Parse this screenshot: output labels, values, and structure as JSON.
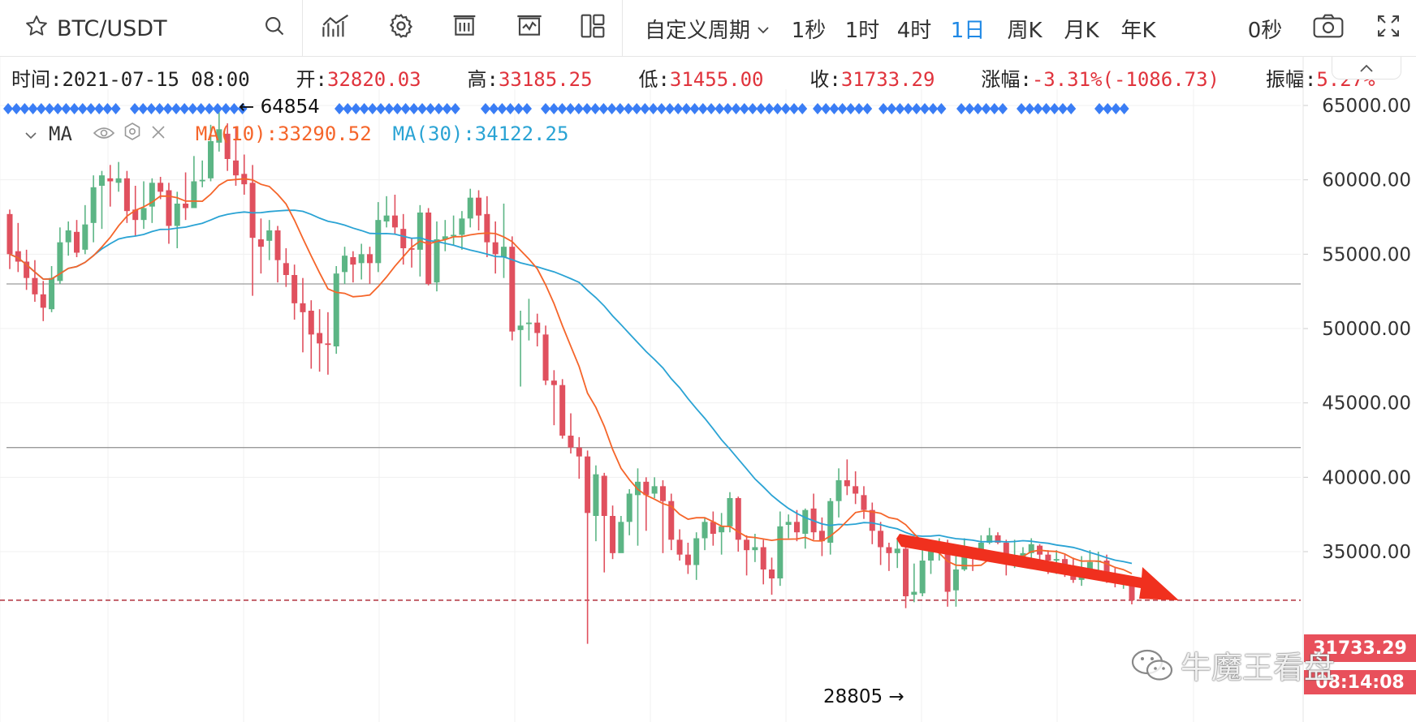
{
  "toolbar": {
    "symbol": "BTC/USDT",
    "custom_period": "自定义周期",
    "periods": [
      "1秒",
      "1时",
      "4时",
      "1日",
      "周K",
      "月K",
      "年K"
    ],
    "active_period": "1日",
    "countdown": "0秒",
    "icons": [
      "star-icon",
      "search-icon",
      "indicator-icon",
      "settings-icon",
      "draw-icon",
      "compare-icon",
      "layout-icon",
      "camera-icon",
      "fullscreen-icon"
    ]
  },
  "info": {
    "time_label": "时间:",
    "time": "2021-07-15 08:00",
    "open_label": "开:",
    "open": "32820.03",
    "high_label": "高:",
    "high": "33185.25",
    "low_label": "低:",
    "low": "31455.00",
    "close_label": "收:",
    "close": "31733.29",
    "change_label": "涨幅:",
    "change": "-3.31%(-1086.73)",
    "amp_label": "振幅:",
    "amp": "5.27%"
  },
  "ma_legend": {
    "name": "MA",
    "ma10_label": "MA(10):33290.52",
    "ma30_label": "MA(30):34122.25"
  },
  "colors": {
    "up": "#5cb585",
    "down": "#e0505e",
    "ma10": "#f5652a",
    "ma30": "#2aa3d4",
    "arrow": "#f0301e",
    "marker": "#3a7df5"
  },
  "current_price_label": "31733.29",
  "countdown_label": "08:14:08",
  "watermark": "牛魔王看盘",
  "chart_data": {
    "type": "candlestick",
    "y_ticks": [
      "65000.00",
      "60000.00",
      "55000.00",
      "50000.00",
      "45000.00",
      "40000.00",
      "35000.00"
    ],
    "ylim": [
      27400,
      66600
    ],
    "high_annotation": "← 64854",
    "low_annotation": "28805 →",
    "horizontal_lines": [
      53000,
      42000
    ],
    "current_price": 31733.29,
    "candles": [
      [
        57700,
        55000,
        58000,
        54000
      ],
      [
        55200,
        54500,
        57100,
        53800
      ],
      [
        54500,
        53400,
        55300,
        52600
      ],
      [
        53400,
        52300,
        54600,
        51800
      ],
      [
        52300,
        51400,
        53200,
        50500
      ],
      [
        51300,
        53400,
        54200,
        51100
      ],
      [
        53200,
        55800,
        56800,
        53000
      ],
      [
        55800,
        56600,
        57200,
        54900
      ],
      [
        56500,
        55100,
        57300,
        54800
      ],
      [
        55300,
        57000,
        58300,
        55000
      ],
      [
        57100,
        59500,
        60300,
        55800
      ],
      [
        59600,
        60300,
        60600,
        56700
      ],
      [
        60100,
        59900,
        61000,
        58200
      ],
      [
        59800,
        60100,
        61200,
        59200
      ],
      [
        60100,
        57900,
        60600,
        57100
      ],
      [
        58000,
        57300,
        59600,
        56200
      ],
      [
        57300,
        58100,
        59900,
        56700
      ],
      [
        58200,
        59800,
        60100,
        57100
      ],
      [
        59800,
        59200,
        60200,
        58700
      ],
      [
        59300,
        56900,
        59800,
        55700
      ],
      [
        56900,
        58400,
        59200,
        55400
      ],
      [
        58400,
        58100,
        60500,
        57300
      ],
      [
        58100,
        59900,
        61600,
        59100
      ],
      [
        59900,
        60000,
        61300,
        59500
      ],
      [
        60100,
        62600,
        63700,
        59900
      ],
      [
        62500,
        63400,
        64854,
        61900
      ],
      [
        63100,
        61400,
        63800,
        60600
      ],
      [
        61300,
        60300,
        63500,
        59600
      ],
      [
        60400,
        59700,
        61700,
        59000
      ],
      [
        59800,
        56100,
        61000,
        52200
      ],
      [
        56000,
        55500,
        57400,
        53700
      ],
      [
        55900,
        56600,
        57300,
        54600
      ],
      [
        56600,
        54600,
        56900,
        53100
      ],
      [
        54400,
        53600,
        55400,
        52800
      ],
      [
        53600,
        51700,
        54300,
        50600
      ],
      [
        51700,
        51100,
        53400,
        48400
      ],
      [
        51200,
        49600,
        51900,
        47300
      ],
      [
        49700,
        49000,
        51300,
        47100
      ],
      [
        49000,
        48900,
        51100,
        46900
      ],
      [
        48800,
        53700,
        54200,
        48300
      ],
      [
        53800,
        54900,
        55500,
        53000
      ],
      [
        54800,
        54300,
        55200,
        53100
      ],
      [
        54400,
        55000,
        55700,
        53300
      ],
      [
        55000,
        54400,
        55500,
        53000
      ],
      [
        54400,
        57300,
        58500,
        53800
      ],
      [
        57200,
        57600,
        58900,
        56800
      ],
      [
        57600,
        56800,
        59000,
        56300
      ],
      [
        56700,
        55400,
        57700,
        54300
      ],
      [
        55400,
        55300,
        56100,
        54100
      ],
      [
        55300,
        57800,
        58300,
        53500
      ],
      [
        57800,
        53000,
        58100,
        52900
      ],
      [
        53100,
        56000,
        57200,
        52500
      ],
      [
        56000,
        56200,
        57300,
        55200
      ],
      [
        56200,
        56300,
        57600,
        55600
      ],
      [
        56300,
        57400,
        57900,
        55300
      ],
      [
        57400,
        58800,
        59400,
        56800
      ],
      [
        58800,
        57600,
        59300,
        56600
      ],
      [
        57700,
        55800,
        58900,
        54800
      ],
      [
        55800,
        55000,
        57200,
        53700
      ],
      [
        54800,
        55500,
        58400,
        53400
      ],
      [
        55500,
        49800,
        56200,
        49200
      ],
      [
        49900,
        50200,
        51200,
        46100
      ],
      [
        50300,
        50400,
        52000,
        49200
      ],
      [
        50400,
        49700,
        51000,
        48800
      ],
      [
        49600,
        46500,
        50200,
        46200
      ],
      [
        46500,
        46200,
        47200,
        43500
      ],
      [
        46200,
        42800,
        46600,
        42600
      ],
      [
        42800,
        42000,
        44300,
        41600
      ],
      [
        42000,
        41400,
        42700,
        39900
      ],
      [
        41400,
        37600,
        41800,
        28805
      ],
      [
        37400,
        40200,
        40800,
        35700
      ],
      [
        40100,
        37400,
        40300,
        33600
      ],
      [
        37400,
        34900,
        38100,
        34500
      ],
      [
        34900,
        37000,
        37400,
        35600
      ],
      [
        37000,
        38900,
        39200,
        36100
      ],
      [
        38800,
        39700,
        40600,
        35400
      ],
      [
        39700,
        38800,
        40000,
        36400
      ],
      [
        38900,
        39400,
        40000,
        38600
      ],
      [
        39400,
        38400,
        39800,
        34900
      ],
      [
        38400,
        35800,
        38900,
        35100
      ],
      [
        35800,
        34800,
        36500,
        34400
      ],
      [
        34800,
        34100,
        35600,
        33500
      ],
      [
        34100,
        35900,
        36300,
        33100
      ],
      [
        35900,
        37000,
        37300,
        35100
      ],
      [
        37000,
        36200,
        37700,
        35400
      ],
      [
        36300,
        36700,
        37600,
        34800
      ],
      [
        36700,
        38600,
        39000,
        36300
      ],
      [
        38600,
        35800,
        38700,
        35000
      ],
      [
        35800,
        35100,
        36100,
        33400
      ],
      [
        35100,
        35300,
        36200,
        34300
      ],
      [
        35300,
        33800,
        35800,
        32800
      ],
      [
        33800,
        33200,
        34600,
        32100
      ],
      [
        33200,
        36700,
        37700,
        32700
      ],
      [
        36800,
        37000,
        37500,
        35900
      ],
      [
        37000,
        36300,
        37800,
        35700
      ],
      [
        36200,
        37800,
        37900,
        35200
      ],
      [
        37900,
        36300,
        38900,
        35800
      ],
      [
        36400,
        35700,
        37300,
        34700
      ],
      [
        35600,
        38400,
        38600,
        34800
      ],
      [
        38400,
        39800,
        40600,
        37300
      ],
      [
        39800,
        39400,
        41200,
        38800
      ],
      [
        39400,
        38900,
        40400,
        38200
      ],
      [
        38800,
        37800,
        39400,
        37200
      ],
      [
        37800,
        36400,
        38300,
        35500
      ],
      [
        36400,
        35300,
        37000,
        34100
      ],
      [
        35300,
        34900,
        35600,
        33700
      ],
      [
        34900,
        35200,
        35900,
        33900
      ],
      [
        35200,
        32000,
        35500,
        31200
      ],
      [
        32100,
        32300,
        34200,
        31600
      ],
      [
        32200,
        34400,
        35100,
        32000
      ],
      [
        34400,
        35200,
        35500,
        33500
      ],
      [
        35200,
        35500,
        35900,
        34400
      ],
      [
        35500,
        32300,
        35800,
        31300
      ],
      [
        32400,
        33800,
        35000,
        31300
      ],
      [
        33800,
        35000,
        35900,
        33700
      ],
      [
        35000,
        34800,
        35200,
        33700
      ],
      [
        34700,
        35600,
        36100,
        34500
      ],
      [
        35600,
        36100,
        36600,
        35500
      ],
      [
        36100,
        35600,
        36300,
        35500
      ],
      [
        35600,
        34200,
        35800,
        33400
      ],
      [
        34200,
        34500,
        35800,
        33900
      ],
      [
        34500,
        34900,
        35300,
        34000
      ],
      [
        34900,
        35500,
        35900,
        34500
      ],
      [
        35400,
        34800,
        35500,
        34200
      ],
      [
        34800,
        34400,
        35100,
        33500
      ],
      [
        34400,
        34500,
        35100,
        33500
      ],
      [
        34500,
        33900,
        34800,
        33300
      ],
      [
        33900,
        33100,
        34600,
        32900
      ],
      [
        33100,
        33800,
        34700,
        32700
      ],
      [
        33800,
        34300,
        35100,
        33600
      ],
      [
        34300,
        34400,
        35000,
        33300
      ],
      [
        34400,
        33200,
        34800,
        32900
      ],
      [
        33200,
        33000,
        33900,
        32600
      ],
      [
        33000,
        33300,
        33400,
        32500
      ],
      [
        32800,
        31733,
        33185,
        31455
      ]
    ]
  }
}
